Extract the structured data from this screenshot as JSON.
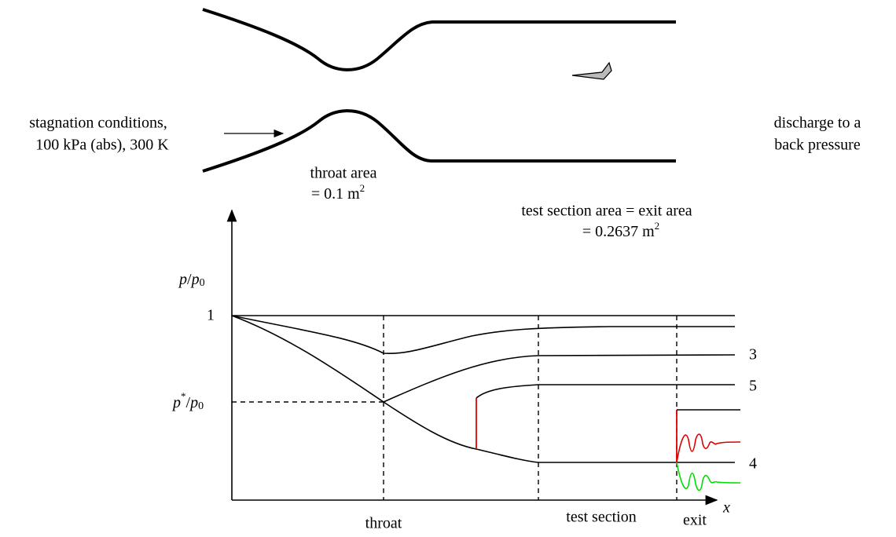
{
  "nozzle": {
    "inlet": {
      "line1": "stagnation conditions,",
      "line2": "100 kPa (abs), 300 K"
    },
    "throat": {
      "line1": "throat area",
      "line2": "= 0.1 m",
      "line2_sup": "2"
    },
    "test_section": {
      "line1": "test section area = exit area",
      "line2": "= 0.2637 m",
      "line2_sup": "2"
    },
    "outlet": {
      "line1": "discharge to a",
      "line2": "back pressure"
    }
  },
  "plot": {
    "y_label": {
      "p": "p",
      "slash": "/",
      "p0": "p",
      "sub": "0"
    },
    "y_one": "1",
    "p_star": {
      "p": "p",
      "sup": "*",
      "slash": "/",
      "p0": "p",
      "sub": "0"
    },
    "x_label": "x",
    "curve_labels": [
      "3",
      "5",
      "4"
    ],
    "x_labels": [
      "throat",
      "test section",
      "exit"
    ]
  }
}
